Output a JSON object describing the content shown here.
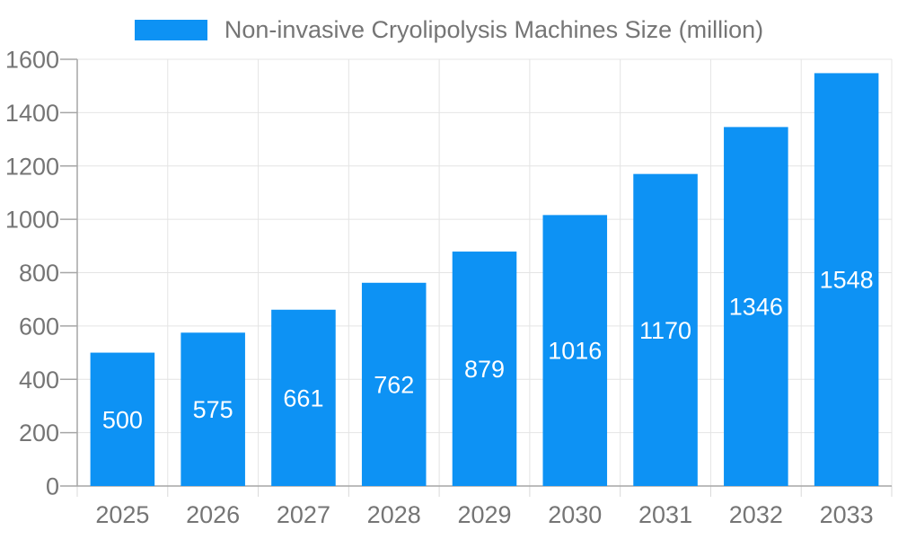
{
  "chart_data": {
    "type": "bar",
    "title": "Non-invasive Cryolipolysis Machines Size (million)",
    "categories": [
      "2025",
      "2026",
      "2027",
      "2028",
      "2029",
      "2030",
      "2031",
      "2032",
      "2033"
    ],
    "values": [
      500,
      575,
      661,
      762,
      879,
      1016,
      1170,
      1346,
      1548
    ],
    "xlabel": "",
    "ylabel": "",
    "ylim": [
      0,
      1600
    ],
    "ytick_step": 200,
    "yticks": [
      0,
      200,
      400,
      600,
      800,
      1000,
      1200,
      1400,
      1600
    ],
    "grid": true,
    "legend_position": "top-center",
    "value_label_position": "inside-center",
    "colors": {
      "bar": "#0d92f4",
      "bar_value_label": "#ffffff",
      "axis_text": "#757575",
      "legend_text": "#757575",
      "grid_line": "#e4e4e4",
      "axis_line": "#a6a6a6",
      "y_tick": "#a6a6a6",
      "x_tick": "#d9d9d9",
      "background": "#ffffff"
    }
  }
}
